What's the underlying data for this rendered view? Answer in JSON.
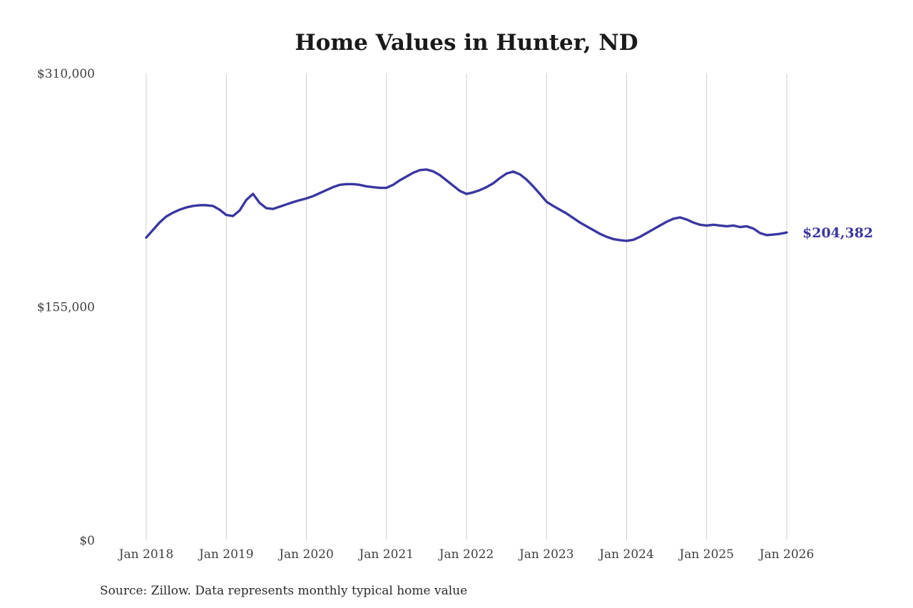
{
  "chart": {
    "title": "Home Values in Hunter, ND",
    "source": "Source: Zillow. Data represents monthly typical home value",
    "end_label": "$204,382",
    "line_color": "#3a37a0",
    "grid_color": "#cfcfcf",
    "y_ticks": [
      {
        "label": "$310,000",
        "value": 310000
      },
      {
        "label": "$155,000",
        "value": 155000
      },
      {
        "label": "$0",
        "value": 0
      }
    ],
    "x_ticks": [
      {
        "label": "Jan 2018",
        "month_index": 0
      },
      {
        "label": "Jan 2019",
        "month_index": 12
      },
      {
        "label": "Jan 2020",
        "month_index": 24
      },
      {
        "label": "Jan 2021",
        "month_index": 36
      },
      {
        "label": "Jan 2022",
        "month_index": 48
      },
      {
        "label": "Jan 2023",
        "month_index": 60
      },
      {
        "label": "Jan 2024",
        "month_index": 72
      },
      {
        "label": "Jan 2025",
        "month_index": 84
      },
      {
        "label": "Jan 2026",
        "month_index": 96
      }
    ]
  },
  "chart_data": {
    "type": "line",
    "title": "Home Values in Hunter, ND",
    "series_name": "Monthly typical home value",
    "x_start": "2018-01",
    "x_frequency": "monthly",
    "x_tick_labels": [
      "Jan 2018",
      "Jan 2019",
      "Jan 2020",
      "Jan 2021",
      "Jan 2022",
      "Jan 2023",
      "Jan 2024",
      "Jan 2025",
      "Jan 2026"
    ],
    "ylim": [
      0,
      310000
    ],
    "y_tick_values": [
      0,
      155000,
      310000
    ],
    "y_tick_labels": [
      "$0",
      "$155,000",
      "$310,000"
    ],
    "grid": "vertical-only",
    "legend": "none",
    "latest_value": 204382,
    "latest_value_label": "$204,382",
    "source": "Source: Zillow. Data represents monthly typical home value",
    "values": [
      201000,
      206000,
      211000,
      215000,
      217500,
      219500,
      221000,
      222000,
      222500,
      222500,
      222000,
      219500,
      216000,
      215300,
      219000,
      226000,
      230000,
      224000,
      220500,
      220000,
      221500,
      223000,
      224500,
      225800,
      227000,
      228500,
      230500,
      232500,
      234500,
      236000,
      236500,
      236500,
      236000,
      235000,
      234500,
      234000,
      234000,
      236000,
      239000,
      241500,
      244000,
      245800,
      246200,
      245000,
      242500,
      239000,
      235500,
      232000,
      230000,
      231000,
      232500,
      234500,
      237000,
      240500,
      243500,
      244800,
      243000,
      239500,
      235000,
      230000,
      224800,
      222000,
      219500,
      217000,
      214000,
      211000,
      208500,
      206000,
      203500,
      201500,
      200000,
      199300,
      198800,
      199500,
      201500,
      204000,
      206500,
      209000,
      211500,
      213500,
      214400,
      213000,
      211000,
      209500,
      209000,
      209500,
      209000,
      208500,
      209000,
      208000,
      208500,
      207000,
      204000,
      202600,
      203000,
      203500,
      204382
    ]
  }
}
